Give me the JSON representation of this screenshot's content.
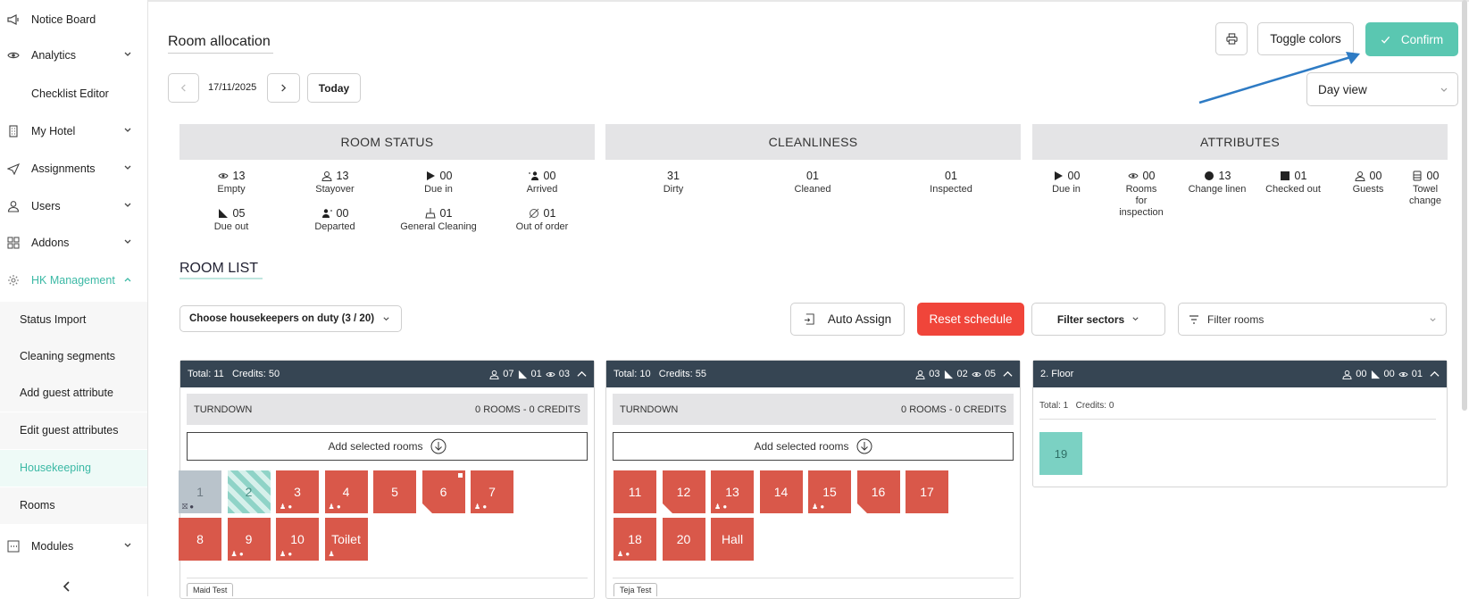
{
  "sidebar": {
    "items": [
      {
        "label": "Notice Board",
        "icon": "megaphone-icon",
        "has_chevron": false
      },
      {
        "label": "Analytics",
        "icon": "eye-icon",
        "has_chevron": true
      },
      {
        "label": "Checklist Editor",
        "icon": "",
        "has_chevron": false
      },
      {
        "label": "My Hotel",
        "icon": "building-icon",
        "has_chevron": true
      },
      {
        "label": "Assignments",
        "icon": "send-icon",
        "has_chevron": true
      },
      {
        "label": "Users",
        "icon": "user-icon",
        "has_chevron": true
      },
      {
        "label": "Addons",
        "icon": "grid-icon",
        "has_chevron": true
      },
      {
        "label": "HK Management",
        "icon": "gear-icon",
        "has_chevron": true,
        "active": true
      }
    ],
    "subitems": [
      {
        "label": "Status Import"
      },
      {
        "label": "Cleaning segments"
      },
      {
        "label": "Add guest attribute"
      },
      {
        "label": "Edit guest attributes"
      },
      {
        "label": "Housekeeping",
        "active": true
      },
      {
        "label": "Rooms"
      }
    ],
    "modules": {
      "label": "Modules",
      "icon": "modules-icon"
    },
    "accent": "#3bb9a5"
  },
  "header": {
    "title": "Room allocation",
    "toggle_colors": "Toggle colors",
    "confirm": "Confirm",
    "date": "17/11/2025",
    "today": "Today",
    "view_select": "Day view"
  },
  "panels": {
    "room_status": {
      "title": "ROOM STATUS",
      "stats": [
        {
          "value": "13",
          "label": "Empty",
          "icon": "eye-icon"
        },
        {
          "value": "13",
          "label": "Stayover",
          "icon": "user-icon"
        },
        {
          "value": "00",
          "label": "Due in",
          "icon": "play-icon"
        },
        {
          "value": "00",
          "label": "Arrived",
          "icon": "arrived-icon"
        },
        {
          "value": "05",
          "label": "Due out",
          "icon": "due-out-icon"
        },
        {
          "value": "00",
          "label": "Departed",
          "icon": "departed-icon"
        },
        {
          "value": "01",
          "label": "General Cleaning",
          "icon": "cleaning-icon"
        },
        {
          "value": "01",
          "label": "Out of order",
          "icon": "out-of-order-icon"
        }
      ]
    },
    "cleanliness": {
      "title": "CLEANLINESS",
      "stats": [
        {
          "value": "31",
          "label": "Dirty"
        },
        {
          "value": "01",
          "label": "Cleaned"
        },
        {
          "value": "01",
          "label": "Inspected"
        }
      ]
    },
    "attributes": {
      "title": "ATTRIBUTES",
      "stats": [
        {
          "value": "00",
          "label": "Due in",
          "icon": "play-icon"
        },
        {
          "value": "00",
          "label": "Rooms for inspection",
          "icon": "eye-icon"
        },
        {
          "value": "13",
          "label": "Change linen",
          "icon": "circle-icon"
        },
        {
          "value": "01",
          "label": "Checked out",
          "icon": "square-icon"
        },
        {
          "value": "00",
          "label": "Guests",
          "icon": "user-icon"
        },
        {
          "value": "00",
          "label": "Towel change",
          "icon": "towel-icon"
        }
      ]
    }
  },
  "room_list": {
    "title": "ROOM LIST",
    "housekeepers_select": "Choose housekeepers on duty (3 / 20)",
    "auto_assign": "Auto Assign",
    "reset_schedule": "Reset schedule",
    "filter_sectors": "Filter sectors",
    "filter_rooms": "Filter rooms",
    "reset_color": "#f0453a"
  },
  "columns": [
    {
      "total": "Total: 11",
      "credits": "Credits: 50",
      "counts": [
        "07",
        "01",
        "03"
      ],
      "turndown": "TURNDOWN",
      "turndown_info": "0 ROOMS - 0 CREDITS",
      "add_selected": "Add selected rooms",
      "maid": "Maid Test",
      "rooms": [
        {
          "label": "1",
          "style": "grey",
          "mark": "⛝ ●"
        },
        {
          "label": "2",
          "style": "hatch"
        },
        {
          "label": "3",
          "style": "red",
          "mark": "♟ ●"
        },
        {
          "label": "4",
          "style": "red",
          "mark": "♟ ●"
        },
        {
          "label": "5",
          "style": "red"
        },
        {
          "label": "6",
          "style": "red",
          "fold": true,
          "square": true
        },
        {
          "label": "7",
          "style": "red",
          "mark": "♟ ●"
        },
        {
          "label": "8",
          "style": "red"
        },
        {
          "label": "9",
          "style": "red",
          "mark": "♟ ●"
        },
        {
          "label": "10",
          "style": "red",
          "mark": "♟ ●"
        },
        {
          "label": "Toilet",
          "style": "red",
          "mark": "♟"
        }
      ]
    },
    {
      "total": "Total: 10",
      "credits": "Credits: 55",
      "counts": [
        "03",
        "02",
        "05"
      ],
      "turndown": "TURNDOWN",
      "turndown_info": "0 ROOMS - 0 CREDITS",
      "add_selected": "Add selected rooms",
      "maid": "Teja Test",
      "rooms": [
        {
          "label": "11",
          "style": "red"
        },
        {
          "label": "12",
          "style": "red",
          "fold": true
        },
        {
          "label": "13",
          "style": "red",
          "mark": "♟ ●"
        },
        {
          "label": "14",
          "style": "red"
        },
        {
          "label": "15",
          "style": "red",
          "mark": "♟ ●"
        },
        {
          "label": "16",
          "style": "red",
          "fold": true
        },
        {
          "label": "17",
          "style": "red"
        },
        {
          "label": "18",
          "style": "red",
          "mark": "♟ ●"
        },
        {
          "label": "20",
          "style": "red"
        },
        {
          "label": "Hall",
          "style": "red"
        }
      ]
    },
    {
      "floor": "2. Floor",
      "counts": [
        "00",
        "00",
        "01"
      ],
      "total": "Total: 1",
      "credits": "Credits: 0",
      "rooms": [
        {
          "label": "19",
          "style": "teal"
        }
      ]
    }
  ]
}
